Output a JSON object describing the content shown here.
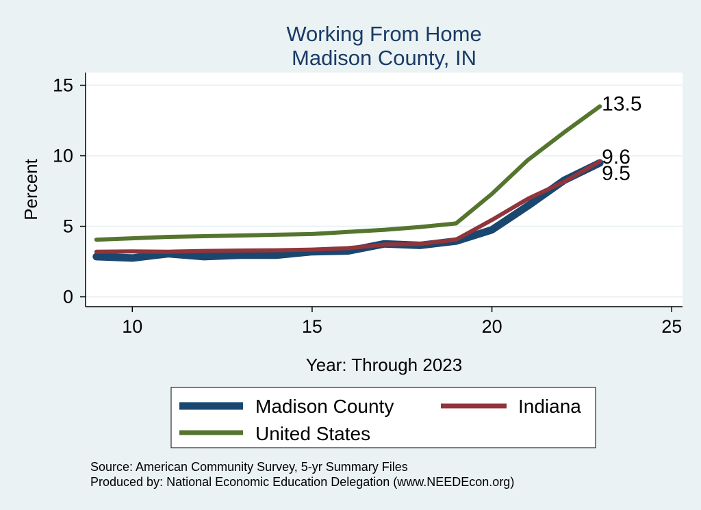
{
  "chart_data": {
    "type": "line",
    "title": [
      "Working From Home",
      "Madison County, IN"
    ],
    "xlabel": "Year: Through 2023",
    "ylabel": "Percent",
    "xlim": [
      8.7,
      25.3
    ],
    "ylim": [
      -0.7,
      15.9
    ],
    "xticks": [
      10,
      15,
      20,
      25
    ],
    "yticks": [
      0,
      5,
      10,
      15
    ],
    "grid": true,
    "legend_position": "bottom",
    "x": [
      9,
      10,
      11,
      12,
      13,
      14,
      15,
      16,
      17,
      18,
      19,
      20,
      21,
      22,
      23
    ],
    "series": [
      {
        "name": "Madison County",
        "color": "#1a476f",
        "values": [
          2.85,
          2.75,
          3.05,
          2.85,
          2.95,
          2.95,
          3.2,
          3.25,
          3.75,
          3.65,
          3.95,
          4.75,
          6.45,
          8.25,
          9.5
        ],
        "end_label": "9.5"
      },
      {
        "name": "Indiana",
        "color": "#90353b",
        "values": [
          3.2,
          3.22,
          3.2,
          3.25,
          3.28,
          3.3,
          3.35,
          3.45,
          3.7,
          3.75,
          4.05,
          5.45,
          6.95,
          8.15,
          9.6
        ],
        "end_label": "9.6"
      },
      {
        "name": "United States",
        "color": "#55752f",
        "values": [
          4.05,
          4.15,
          4.25,
          4.3,
          4.35,
          4.4,
          4.45,
          4.6,
          4.75,
          4.95,
          5.2,
          7.3,
          9.7,
          11.65,
          13.5
        ],
        "end_label": "13.5"
      }
    ]
  },
  "notes": [
    "Source: American Community Survey, 5-yr Summary Files",
    "Produced by: National Economic Education Delegation (www.NEEDEcon.org)"
  ]
}
